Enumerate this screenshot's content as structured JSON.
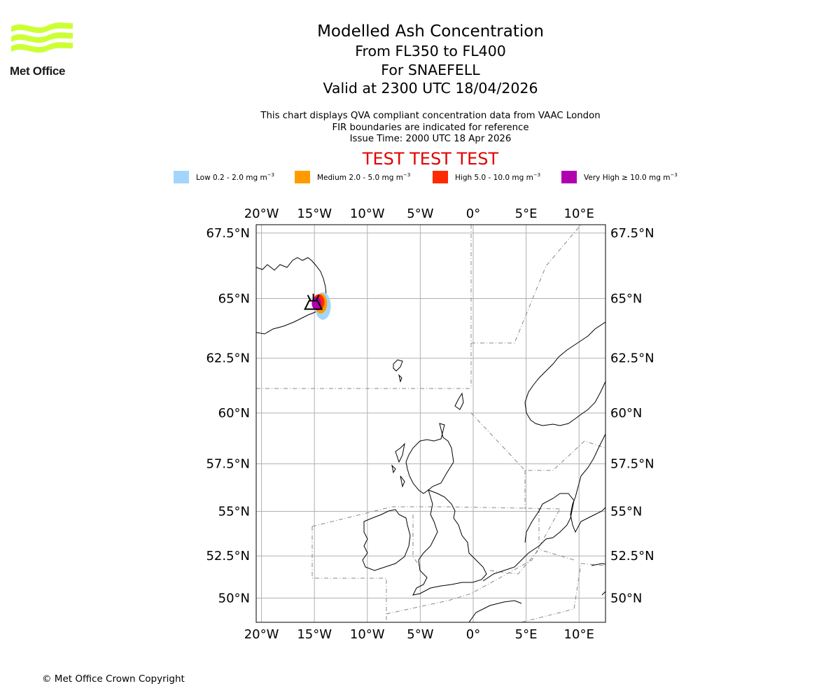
{
  "logo": {
    "text": "Met Office",
    "brand_color": "#ccff33"
  },
  "header": {
    "title": "Modelled Ash Concentration",
    "levels": "From FL350 to FL400",
    "volcano": "For SNAEFELL",
    "valid": "Valid at 2300 UTC 18/04/2026"
  },
  "description": {
    "line1": "This chart displays QVA compliant concentration data from VAAC London",
    "line2": "FIR boundaries are indicated for reference",
    "line3": "Issue Time: 2000 UTC 18 Apr 2026"
  },
  "test_banner": "TEST TEST TEST",
  "legend": [
    {
      "label": "Low 0.2 - 2.0 mg m",
      "unit_exp": "−3",
      "color": "#a3d5fc"
    },
    {
      "label": "Medium 2.0 - 5.0 mg m",
      "unit_exp": "−3",
      "color": "#ff9b00"
    },
    {
      "label": "High 5.0 - 10.0 mg m",
      "unit_exp": "−3",
      "color": "#ff2a00"
    },
    {
      "label": "Very High ≥ 10.0 mg m",
      "unit_exp": "−3",
      "color": "#b000b0"
    }
  ],
  "map": {
    "lon_range": [
      -20.5,
      12.5
    ],
    "lat_range": [
      48.5,
      67.8
    ],
    "lon_ticks": [
      {
        "value": -20,
        "label": "20°W"
      },
      {
        "value": -15,
        "label": "15°W"
      },
      {
        "value": -10,
        "label": "10°W"
      },
      {
        "value": -5,
        "label": "5°W"
      },
      {
        "value": 0,
        "label": "0°"
      },
      {
        "value": 5,
        "label": "5°E"
      },
      {
        "value": 10,
        "label": "10°E"
      }
    ],
    "lat_ticks": [
      {
        "value": 67.5,
        "label": "67.5°N"
      },
      {
        "value": 65,
        "label": "65°N"
      },
      {
        "value": 62.5,
        "label": "62.5°N"
      },
      {
        "value": 60,
        "label": "60°N"
      },
      {
        "value": 57.5,
        "label": "57.5°N"
      },
      {
        "value": 55,
        "label": "55°N"
      },
      {
        "value": 52.5,
        "label": "52.5°N"
      },
      {
        "value": 50,
        "label": "50°N"
      }
    ],
    "volcano_location": {
      "lon": -15.1,
      "lat": 64.8
    },
    "ash_cloud": [
      {
        "level": "low",
        "color": "#a3d5fc",
        "center": {
          "lon": -14.2,
          "lat": 64.7
        },
        "radius_lon": 0.75,
        "radius_lat": 0.55
      },
      {
        "level": "medium",
        "color": "#ff9b00",
        "center": {
          "lon": -14.4,
          "lat": 64.8
        },
        "radius_lon": 0.6,
        "radius_lat": 0.4
      },
      {
        "level": "high",
        "color": "#ff2a00",
        "center": {
          "lon": -14.6,
          "lat": 64.85
        },
        "radius_lon": 0.55,
        "radius_lat": 0.32
      },
      {
        "level": "very_high",
        "color": "#b000b0",
        "center": {
          "lon": -14.8,
          "lat": 64.8
        },
        "radius_lon": 0.45,
        "radius_lat": 0.26
      }
    ]
  },
  "footer": {
    "copyright": "© Met Office Crown Copyright"
  }
}
